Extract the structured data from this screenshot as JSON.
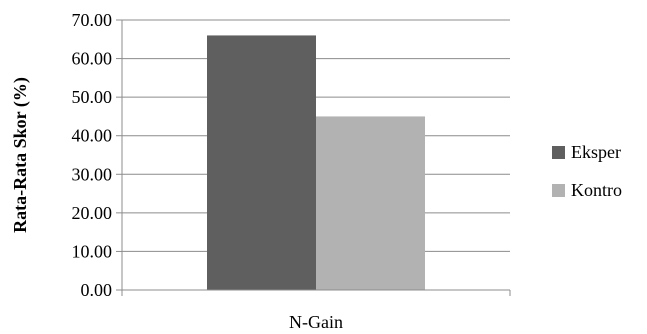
{
  "chart_data": {
    "type": "bar",
    "categories": [
      "N-Gain"
    ],
    "series": [
      {
        "name": "Eksper",
        "values": [
          66.0
        ],
        "color": "#5f5f5f"
      },
      {
        "name": "Kontro",
        "values": [
          45.0
        ],
        "color": "#b2b2b2"
      }
    ],
    "title": "",
    "xlabel": "",
    "ylabel": "Rata-Rata Skor (%)",
    "ylim": [
      0,
      70
    ],
    "yticks": [
      "0.00",
      "10.00",
      "20.00",
      "30.00",
      "40.00",
      "50.00",
      "60.00",
      "70.00"
    ],
    "grid": true,
    "legend_position": "right"
  }
}
